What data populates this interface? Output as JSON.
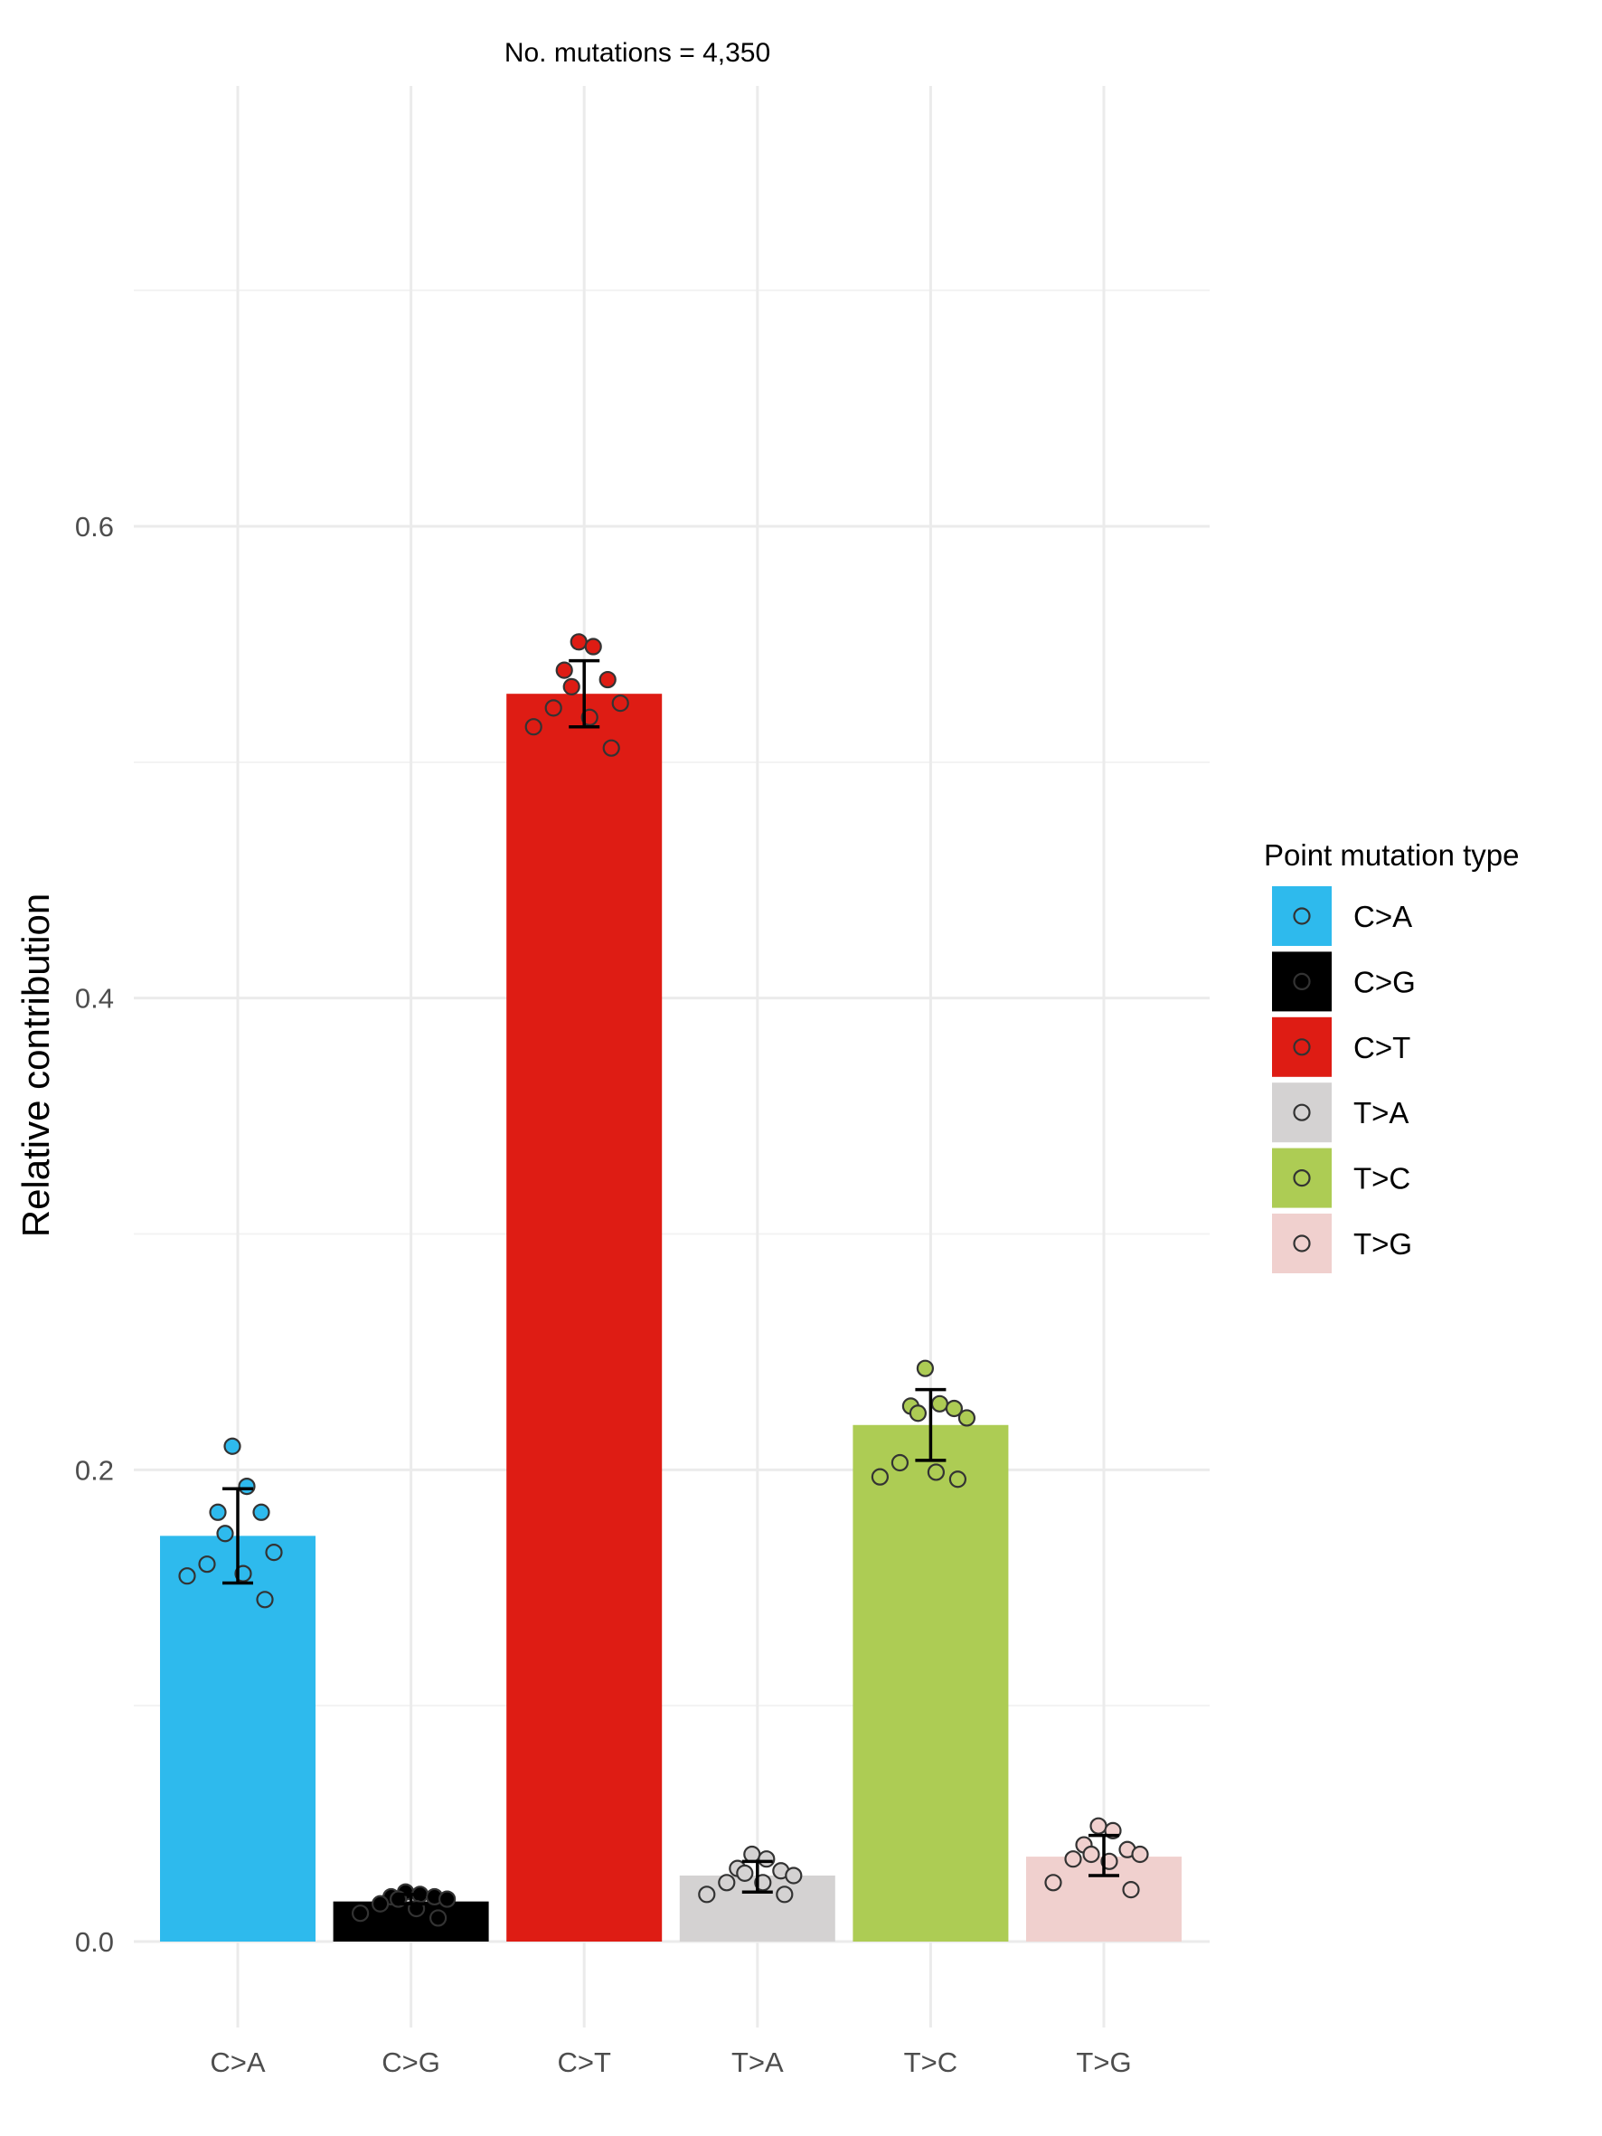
{
  "chart_data": {
    "type": "bar",
    "subtitle": "No. mutations =  4,350",
    "xlabel": "",
    "ylabel": "Relative contribution",
    "ylim": [
      -0.033,
      0.78
    ],
    "yticks": [
      0.0,
      0.2,
      0.4,
      0.6
    ],
    "ytick_labels": [
      "0.0",
      "0.2",
      "0.4",
      "0.6"
    ],
    "grid": true,
    "legend_title": "Point mutation type",
    "legend_position": "right",
    "categories": [
      "C>A",
      "C>G",
      "C>T",
      "T>A",
      "T>C",
      "T>G"
    ],
    "values": [
      0.172,
      0.017,
      0.529,
      0.028,
      0.219,
      0.036
    ],
    "errors": [
      {
        "low": 0.152,
        "high": 0.192
      },
      {
        "low": 0.016,
        "high": 0.02
      },
      {
        "low": 0.515,
        "high": 0.543
      },
      {
        "low": 0.021,
        "high": 0.034
      },
      {
        "low": 0.204,
        "high": 0.234
      },
      {
        "low": 0.028,
        "high": 0.045
      }
    ],
    "points": [
      [
        0.21,
        0.193,
        0.182,
        0.182,
        0.173,
        0.165,
        0.16,
        0.156,
        0.155,
        0.145
      ],
      [
        0.021,
        0.02,
        0.019,
        0.019,
        0.018,
        0.018,
        0.016,
        0.014,
        0.012,
        0.01
      ],
      [
        0.551,
        0.549,
        0.539,
        0.535,
        0.532,
        0.525,
        0.523,
        0.519,
        0.515,
        0.506
      ],
      [
        0.037,
        0.035,
        0.031,
        0.03,
        0.029,
        0.028,
        0.025,
        0.025,
        0.02,
        0.02
      ],
      [
        0.243,
        0.228,
        0.227,
        0.226,
        0.224,
        0.222,
        0.203,
        0.199,
        0.197,
        0.196
      ],
      [
        0.049,
        0.047,
        0.041,
        0.039,
        0.037,
        0.037,
        0.035,
        0.034,
        0.025,
        0.022
      ]
    ],
    "colors": [
      "#2EBAED",
      "#000000",
      "#DE1C14",
      "#D4D2D2",
      "#ADCC54",
      "#F0D0CE"
    ],
    "legend_colors": [
      "#2EBAED",
      "#000000",
      "#DE1C14",
      "#D4D2D2",
      "#ADCC54",
      "#F0D0CE"
    ]
  }
}
